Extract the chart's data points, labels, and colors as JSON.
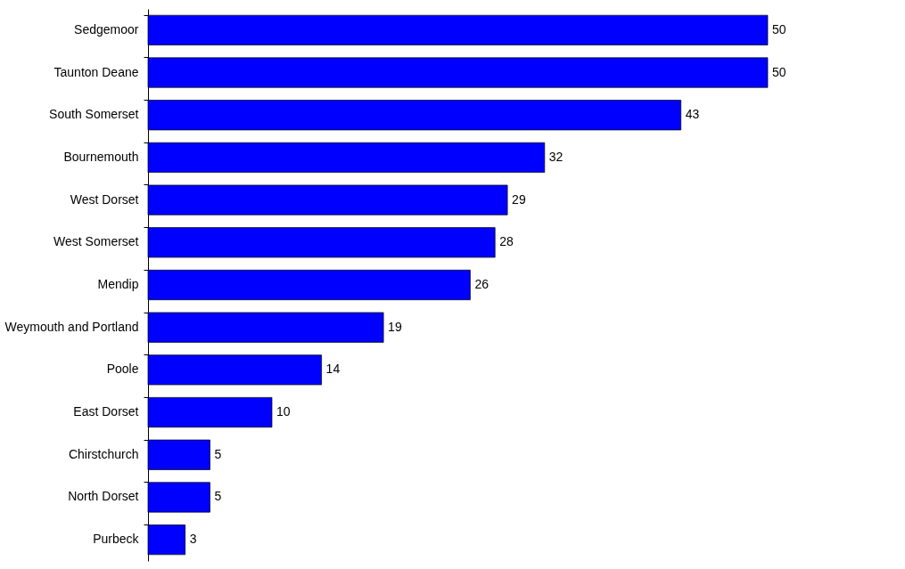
{
  "chart_data": {
    "type": "bar",
    "orientation": "horizontal",
    "categories": [
      "Sedgemoor",
      "Taunton Deane",
      "South Somerset",
      "Bournemouth",
      "West Dorset",
      "West Somerset",
      "Mendip",
      "Weymouth and Portland",
      "Poole",
      "East Dorset",
      "Chirstchurch",
      "North Dorset",
      "Purbeck"
    ],
    "values": [
      50,
      50,
      43,
      32,
      29,
      28,
      26,
      19,
      14,
      10,
      5,
      5,
      3
    ],
    "color": "#0000ff",
    "data_labels": true,
    "tick_labels": "y"
  }
}
